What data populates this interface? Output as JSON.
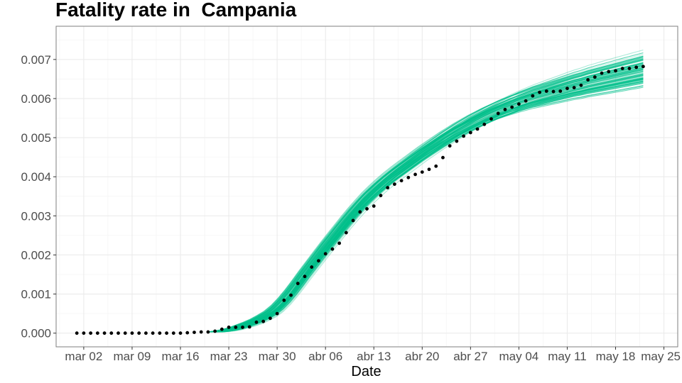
{
  "chart_data": {
    "type": "line",
    "title": "Fatality rate in  Campania",
    "xlabel": "Date",
    "ylabel": "",
    "x_tick_labels": [
      "mar 02",
      "mar 09",
      "mar 16",
      "mar 23",
      "mar 30",
      "abr 06",
      "abr 13",
      "abr 20",
      "abr 27",
      "may 04",
      "may 11",
      "may 18",
      "may 25"
    ],
    "y_tick_labels": [
      "0.000",
      "0.001",
      "0.002",
      "0.003",
      "0.004",
      "0.005",
      "0.006",
      "0.007"
    ],
    "x_start_day": 0,
    "x_tick_days": [
      0,
      7,
      14,
      21,
      28,
      35,
      42,
      49,
      56,
      63,
      70,
      77,
      84
    ],
    "xlim_days": [
      -4,
      86
    ],
    "ylim": [
      -0.00035,
      0.00785
    ],
    "grid": true,
    "colors": {
      "simulation": "#00c08b",
      "observed": "#000000",
      "panel_border": "#7f7f7f",
      "grid_major": "#ebebeb",
      "grid_minor": "#f5f5f5"
    },
    "observed": {
      "x_days": [
        -1,
        0,
        1,
        2,
        3,
        4,
        5,
        6,
        7,
        8,
        9,
        10,
        11,
        12,
        13,
        14,
        15,
        16,
        17,
        18,
        19,
        20,
        21,
        22,
        23,
        24,
        25,
        26,
        27,
        28,
        29,
        30,
        31,
        32,
        33,
        34,
        35,
        36,
        37,
        38,
        39,
        40,
        41,
        42,
        43,
        44,
        45,
        46,
        47,
        48,
        49,
        50,
        51,
        52,
        53,
        54,
        55,
        56,
        57,
        58,
        59,
        60,
        61,
        62,
        63,
        64,
        65,
        66,
        67,
        68,
        69,
        70,
        71,
        72,
        73,
        74,
        75,
        76,
        77,
        78,
        79,
        80,
        81
      ],
      "y": [
        0,
        0,
        0,
        0,
        0,
        0,
        0,
        0,
        0,
        0,
        0,
        0,
        0,
        0,
        0,
        0,
        1e-05,
        2e-05,
        3e-05,
        3e-05,
        5e-05,
        0.0001,
        0.00015,
        0.00015,
        0.00015,
        0.00016,
        0.00028,
        0.0003,
        0.00038,
        0.0005,
        0.00084,
        0.00097,
        0.00127,
        0.00145,
        0.00169,
        0.00185,
        0.00203,
        0.00215,
        0.0023,
        0.00257,
        0.00288,
        0.0031,
        0.00318,
        0.00325,
        0.00352,
        0.00372,
        0.00381,
        0.0039,
        0.00398,
        0.00406,
        0.00412,
        0.00419,
        0.00427,
        0.00449,
        0.00479,
        0.00491,
        0.00504,
        0.00513,
        0.00522,
        0.00534,
        0.00548,
        0.00562,
        0.00572,
        0.00578,
        0.00586,
        0.00594,
        0.00607,
        0.00616,
        0.00619,
        0.00618,
        0.00619,
        0.00626,
        0.00628,
        0.00634,
        0.00648,
        0.00655,
        0.00665,
        0.00669,
        0.00671,
        0.00677,
        0.00677,
        0.0068,
        0.00682
      ]
    },
    "simulations": {
      "count": 100,
      "x_days": [
        19,
        20,
        21,
        22,
        23,
        24,
        25,
        26,
        27,
        28,
        29,
        30,
        31,
        32,
        33,
        34,
        35,
        36,
        37,
        38,
        39,
        40,
        41,
        42,
        43,
        44,
        45,
        46,
        47,
        48,
        49,
        50,
        51,
        52,
        53,
        54,
        55,
        56,
        57,
        58,
        59,
        60,
        61,
        62,
        63,
        64,
        65,
        66,
        67,
        68,
        69,
        70,
        71,
        72,
        73,
        74,
        75,
        76,
        77,
        78,
        79,
        80,
        81
      ],
      "y_center": [
        3e-05,
        5e-05,
        8e-05,
        0.00012,
        0.00018,
        0.00024,
        0.00031,
        0.0004,
        0.0005,
        0.00064,
        0.00082,
        0.00103,
        0.00126,
        0.0015,
        0.00173,
        0.00196,
        0.00219,
        0.00241,
        0.00263,
        0.00285,
        0.00306,
        0.00326,
        0.00345,
        0.00362,
        0.00378,
        0.00393,
        0.00407,
        0.0042,
        0.00433,
        0.00446,
        0.00459,
        0.00471,
        0.00483,
        0.00495,
        0.00506,
        0.00517,
        0.00527,
        0.00537,
        0.00546,
        0.00555,
        0.00563,
        0.00571,
        0.00578,
        0.00585,
        0.00592,
        0.00598,
        0.00604,
        0.00609,
        0.00614,
        0.00619,
        0.00624,
        0.00629,
        0.00634,
        0.00638,
        0.00643,
        0.00647,
        0.00651,
        0.00655,
        0.00659,
        0.00663,
        0.00667,
        0.00671,
        0.00675
      ],
      "y_spread_end": 0.0004
    }
  }
}
